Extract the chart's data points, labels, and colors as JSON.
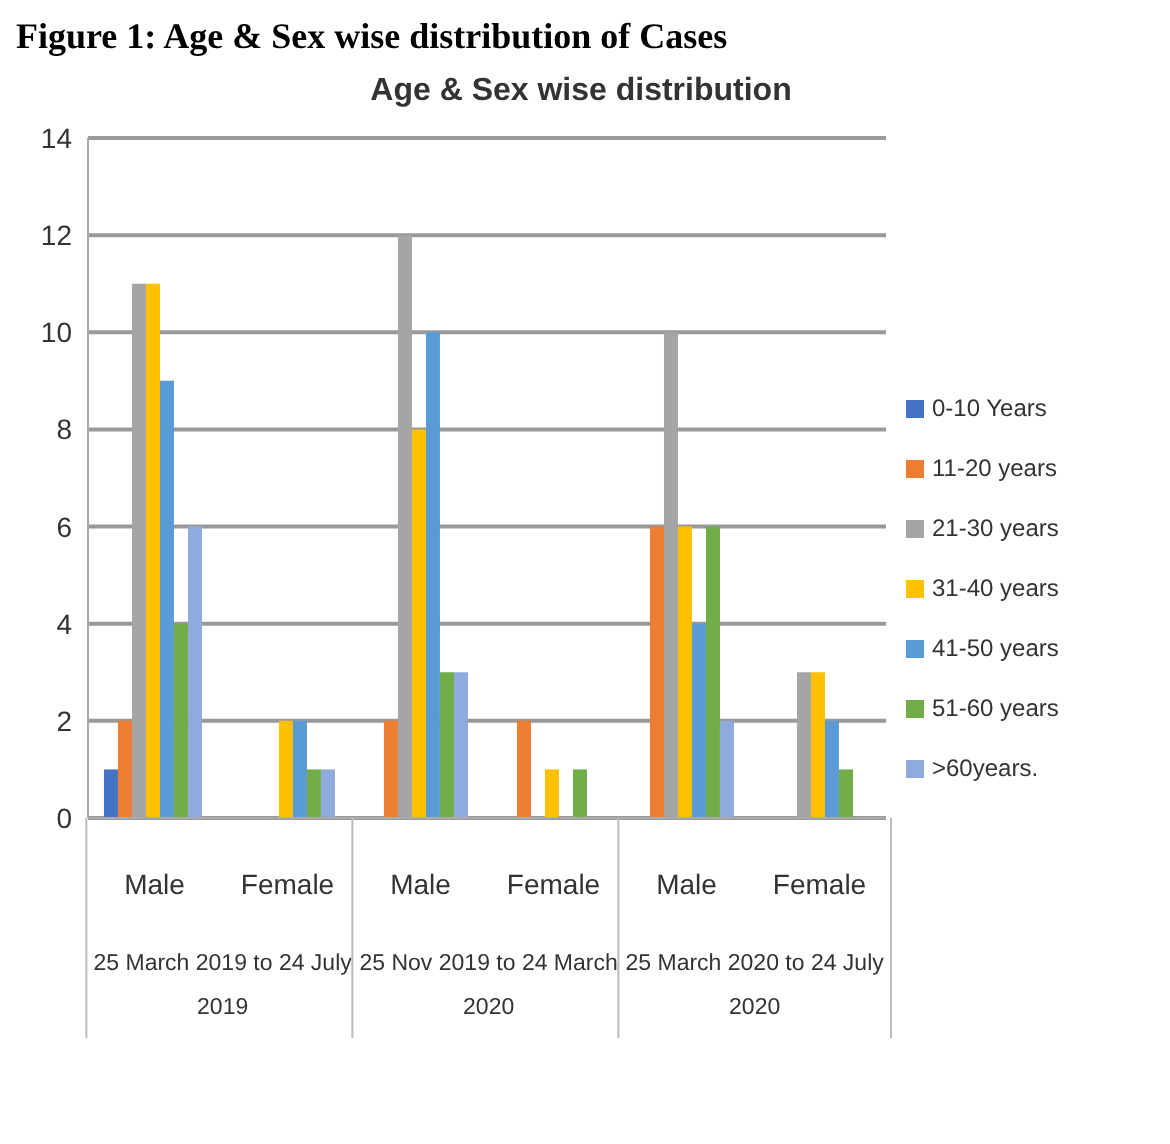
{
  "chart_data": {
    "type": "bar",
    "title": "Age & Sex wise distribution",
    "annotations": [
      "Figure 1: Age & Sex wise distribution of Cases",
      "25 March 2019 to 24 July 2019",
      "25 Nov 2019 to 24 March 2020",
      "25 March 2020 to 24 July 2020"
    ],
    "categories": [
      "Male",
      "Female",
      "Male",
      "Female",
      "Male",
      "Female"
    ],
    "series": [
      {
        "name": "0-10 Years",
        "color": "#4472c4",
        "values": [
          1,
          0,
          0,
          0,
          0,
          0
        ]
      },
      {
        "name": "11-20 years",
        "color": "#ed7d31",
        "values": [
          2,
          0,
          2,
          2,
          6,
          0
        ]
      },
      {
        "name": "21-30 years",
        "color": "#a5a5a5",
        "values": [
          11,
          0,
          12,
          0,
          10,
          3
        ]
      },
      {
        "name": "31-40 years",
        "color": "#ffc000",
        "values": [
          11,
          2,
          8,
          1,
          6,
          3
        ]
      },
      {
        "name": "41-50 years",
        "color": "#5b9bd5",
        "values": [
          9,
          2,
          10,
          0,
          4,
          2
        ]
      },
      {
        "name": "51-60 years",
        "color": "#70ad47",
        "values": [
          4,
          1,
          3,
          1,
          6,
          1
        ]
      },
      {
        "name": ">60years.",
        "color": "#8faadc",
        "values": [
          6,
          1,
          3,
          0,
          2,
          0
        ]
      }
    ],
    "ylim": [
      0,
      14
    ],
    "yticks": [
      0,
      2,
      4,
      6,
      8,
      10,
      12,
      14
    ],
    "grid": "y",
    "legend": "right"
  }
}
